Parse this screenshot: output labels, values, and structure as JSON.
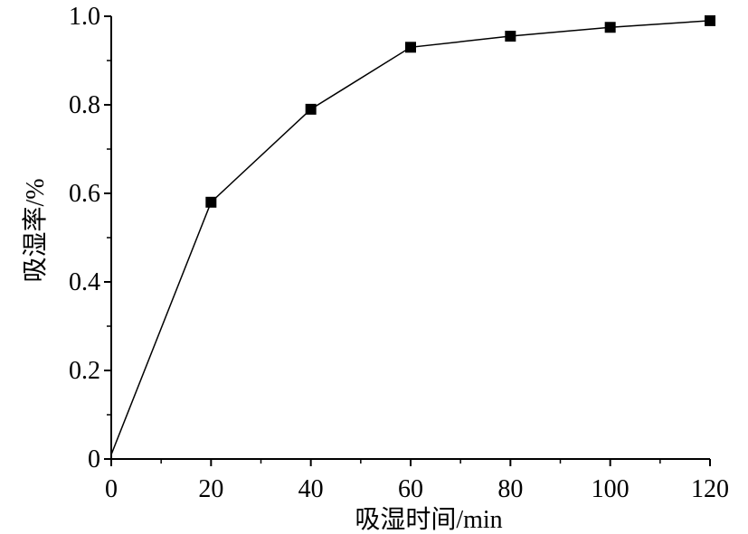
{
  "chart_data": {
    "type": "line",
    "xlabel": "吸湿时间/min",
    "ylabel": "吸湿率/%",
    "xlim": [
      0,
      120
    ],
    "ylim": [
      0,
      1.0
    ],
    "x_ticks": [
      0,
      20,
      40,
      60,
      80,
      100,
      120
    ],
    "x_tick_labels": [
      "0",
      "20",
      "40",
      "60",
      "80",
      "100",
      "120"
    ],
    "y_ticks": [
      0,
      0.2,
      0.4,
      0.6,
      0.8,
      1.0
    ],
    "y_tick_labels": [
      "0",
      "0.2",
      "0.4",
      "0.6",
      "0.8",
      "1.0"
    ],
    "grid": false,
    "series": [
      {
        "marker": "square",
        "color": "#000000",
        "points": [
          {
            "x": 0,
            "y": 0.01
          },
          {
            "x": 20,
            "y": 0.58
          },
          {
            "x": 40,
            "y": 0.79
          },
          {
            "x": 60,
            "y": 0.93
          },
          {
            "x": 80,
            "y": 0.955
          },
          {
            "x": 100,
            "y": 0.975
          },
          {
            "x": 120,
            "y": 0.99
          }
        ]
      }
    ]
  }
}
